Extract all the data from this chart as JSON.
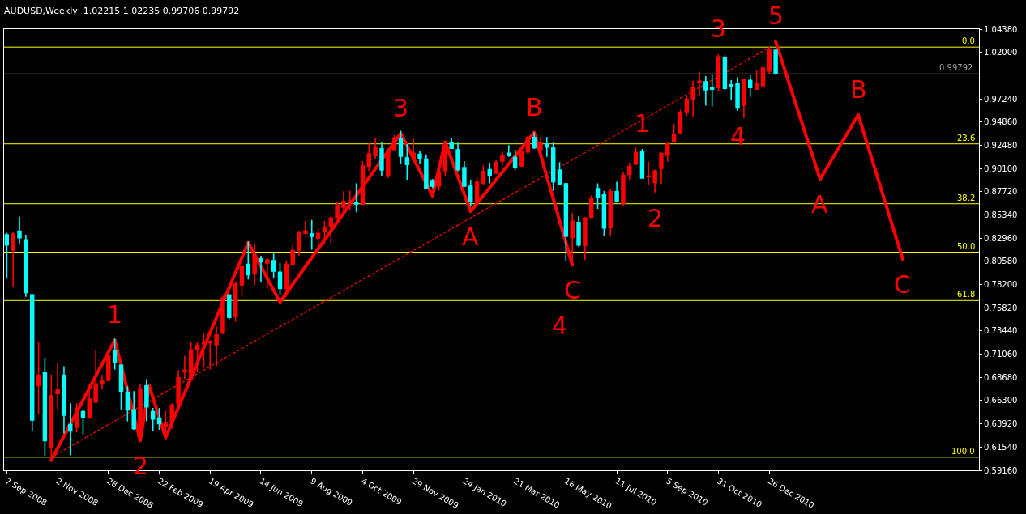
{
  "chart_data": {
    "type": "candlestick",
    "title": "AUDUSD,Weekly  1.02215 1.02235 0.99706 0.99792",
    "colors": [
      "#00ffff",
      "#ff0000",
      "#00ffff",
      "#00ffff",
      "#00ffff",
      "#ff0000",
      "#00ffff",
      "#ff0000",
      "#ff0000",
      "#00ffff",
      "#00ffff",
      "#ff0000",
      "#00ffff",
      "#ff0000",
      "#ff0000",
      "#ff0000",
      "#ff0000",
      "#00ffff",
      "#00ffff",
      "#00ffff",
      "#00ffff",
      "#ff0000",
      "#00ffff",
      "#00ffff",
      "#00ffff",
      "#ff0000",
      "#ff0000",
      "#ff0000",
      "#ff0000",
      "#ff0000",
      "#ff0000",
      "#ff0000",
      "#ff0000",
      "#ff0000",
      "#ff0000",
      "#00ffff",
      "#ff0000",
      "#ff0000",
      "#00ffff",
      "#ff0000",
      "#00ffff",
      "#ff0000",
      "#00ffff",
      "#00ffff",
      "#ff0000",
      "#ff0000",
      "#ff0000",
      "#ff0000",
      "#00ffff",
      "#ff0000",
      "#ff0000",
      "#ff0000",
      "#ff0000",
      "#ff0000",
      "#ff0000",
      "#00ffff",
      "#ff0000",
      "#ff0000",
      "#ff0000",
      "#00ffff",
      "#ff0000",
      "#ff0000",
      "#00ffff",
      "#00ffff",
      "#ff0000",
      "#00ffff",
      "#00ffff",
      "#00ffff",
      "#ff0000",
      "#ff0000",
      "#00ffff",
      "#00ffff",
      "#00ffff",
      "#00ffff",
      "#ff0000",
      "#ff0000",
      "#00ffff",
      "#ff0000",
      "#ff0000",
      "#00ffff",
      "#00ffff",
      "#ff0000",
      "#ff0000",
      "#00ffff",
      "#ff0000",
      "#00ffff",
      "#00ffff",
      "#00ffff",
      "#00ffff",
      "#ff0000",
      "#00ffff",
      "#ff0000",
      "#ff0000",
      "#00ffff",
      "#00ffff",
      "#ff0000",
      "#00ffff",
      "#ff0000",
      "#ff0000",
      "#ff0000",
      "#00ffff",
      "#ff0000",
      "#ff0000",
      "#ff0000",
      "#ff0000",
      "#ff0000",
      "#ff0000",
      "#ff0000",
      "#ff0000",
      "#ff0000",
      "#00ffff",
      "#00ffff",
      "#ff0000",
      "#00ffff",
      "#00ffff",
      "#00ffff",
      "#ff0000",
      "#00ffff",
      "#ff0000",
      "#ff0000",
      "#ff0000",
      "#00ffff"
    ],
    "x": [
      "2008-09-07",
      "2008-09-14",
      "2008-09-21",
      "2008-09-28",
      "2008-10-05",
      "2008-10-12",
      "2008-10-19",
      "2008-10-26",
      "2008-11-02",
      "2008-11-09",
      "2008-11-16",
      "2008-11-23",
      "2008-11-30",
      "2008-12-07",
      "2008-12-14",
      "2008-12-21",
      "2008-12-28",
      "2009-01-04",
      "2009-01-11",
      "2009-01-18",
      "2009-01-25",
      "2009-02-01",
      "2009-02-08",
      "2009-02-15",
      "2009-02-22",
      "2009-03-01",
      "2009-03-08",
      "2009-03-15",
      "2009-03-22",
      "2009-03-29",
      "2009-04-05",
      "2009-04-12",
      "2009-04-19",
      "2009-04-26",
      "2009-05-03",
      "2009-05-10",
      "2009-05-17",
      "2009-05-24",
      "2009-05-31",
      "2009-06-07",
      "2009-06-14",
      "2009-06-21",
      "2009-06-28",
      "2009-07-05",
      "2009-07-12",
      "2009-07-19",
      "2009-07-26",
      "2009-08-02",
      "2009-08-09",
      "2009-08-16",
      "2009-08-23",
      "2009-08-30",
      "2009-09-06",
      "2009-09-13",
      "2009-09-20",
      "2009-09-27",
      "2009-10-04",
      "2009-10-11",
      "2009-10-18",
      "2009-10-25",
      "2009-11-01",
      "2009-11-08",
      "2009-11-15",
      "2009-11-22",
      "2009-11-29",
      "2009-12-06",
      "2009-12-13",
      "2009-12-20",
      "2009-12-27",
      "2010-01-03",
      "2010-01-10",
      "2010-01-17",
      "2010-01-24",
      "2010-01-31",
      "2010-02-07",
      "2010-02-14",
      "2010-02-21",
      "2010-02-28",
      "2010-03-07",
      "2010-03-14",
      "2010-03-21",
      "2010-03-28",
      "2010-04-04",
      "2010-04-11",
      "2010-04-18",
      "2010-04-25",
      "2010-05-02",
      "2010-05-09",
      "2010-05-16",
      "2010-05-23",
      "2010-05-30",
      "2010-06-06",
      "2010-06-13",
      "2010-06-20",
      "2010-06-27",
      "2010-07-04",
      "2010-07-11",
      "2010-07-18",
      "2010-07-25",
      "2010-08-01",
      "2010-08-08",
      "2010-08-15",
      "2010-08-22",
      "2010-08-29",
      "2010-09-05",
      "2010-09-12",
      "2010-09-19",
      "2010-09-26",
      "2010-10-03",
      "2010-10-10",
      "2010-10-17",
      "2010-10-24",
      "2010-10-31",
      "2010-11-07",
      "2010-11-14",
      "2010-11-21",
      "2010-11-28",
      "2010-12-05",
      "2010-12-12",
      "2010-12-19",
      "2010-12-26",
      "2011-01-02"
    ],
    "ohlc": [
      [
        0.833,
        0.835,
        0.7891,
        0.8226
      ],
      [
        0.8176,
        0.8357,
        0.7797,
        0.8337
      ],
      [
        0.8367,
        0.8516,
        0.8238,
        0.83
      ],
      [
        0.8278,
        0.833,
        0.7693,
        0.7738
      ],
      [
        0.7713,
        0.7723,
        0.6323,
        0.643
      ],
      [
        0.6784,
        0.7238,
        0.6487,
        0.6888
      ],
      [
        0.6918,
        0.7069,
        0.6063,
        0.6219
      ],
      [
        0.6157,
        0.6896,
        0.6009,
        0.6678
      ],
      [
        0.6702,
        0.7015,
        0.6541,
        0.674
      ],
      [
        0.6888,
        0.6982,
        0.6294,
        0.648
      ],
      [
        0.6385,
        0.6603,
        0.6071,
        0.6319
      ],
      [
        0.6356,
        0.6603,
        0.6306,
        0.6546
      ],
      [
        0.6517,
        0.6541,
        0.6286,
        0.646
      ],
      [
        0.646,
        0.6801,
        0.6442,
        0.6645
      ],
      [
        0.6616,
        0.7143,
        0.6603,
        0.6801
      ],
      [
        0.6801,
        0.6893,
        0.6752,
        0.6834
      ],
      [
        0.6839,
        0.7099,
        0.6826,
        0.7091
      ],
      [
        0.7141,
        0.7267,
        0.695,
        0.7024
      ],
      [
        0.6992,
        0.7,
        0.6534,
        0.6727
      ],
      [
        0.6715,
        0.6777,
        0.6418,
        0.6534
      ],
      [
        0.6536,
        0.6727,
        0.6331,
        0.6343
      ],
      [
        0.6368,
        0.6801,
        0.6207,
        0.6752
      ],
      [
        0.6782,
        0.6851,
        0.6418,
        0.6566
      ],
      [
        0.6517,
        0.6554,
        0.6323,
        0.6442
      ],
      [
        0.645,
        0.6554,
        0.6331,
        0.6393
      ],
      [
        0.6363,
        0.6524,
        0.6306,
        0.6405
      ],
      [
        0.6405,
        0.6603,
        0.6343,
        0.6584
      ],
      [
        0.66,
        0.6943,
        0.655,
        0.6863
      ],
      [
        0.6925,
        0.7091,
        0.6851,
        0.6943
      ],
      [
        0.6851,
        0.7228,
        0.6839,
        0.7148
      ],
      [
        0.7156,
        0.7235,
        0.6925,
        0.7198
      ],
      [
        0.721,
        0.7327,
        0.6975,
        0.7223
      ],
      [
        0.7223,
        0.7247,
        0.695,
        0.7235
      ],
      [
        0.7203,
        0.7391,
        0.6987,
        0.7304
      ],
      [
        0.7322,
        0.7706,
        0.7309,
        0.7681
      ],
      [
        0.7713,
        0.7718,
        0.7463,
        0.7483
      ],
      [
        0.749,
        0.7854,
        0.7438,
        0.7824
      ],
      [
        0.7817,
        0.801,
        0.7693,
        0.8003
      ],
      [
        0.8028,
        0.8263,
        0.7872,
        0.7921
      ],
      [
        0.7929,
        0.8233,
        0.7817,
        0.8122
      ],
      [
        0.8085,
        0.8114,
        0.7842,
        0.8052
      ],
      [
        0.804,
        0.809,
        0.778,
        0.8072
      ],
      [
        0.8065,
        0.8152,
        0.7891,
        0.7958
      ],
      [
        0.7946,
        0.804,
        0.7706,
        0.778
      ],
      [
        0.778,
        0.807,
        0.7693,
        0.8028
      ],
      [
        0.802,
        0.8218,
        0.8015,
        0.8169
      ],
      [
        0.8176,
        0.8374,
        0.8114,
        0.8355
      ],
      [
        0.8345,
        0.8471,
        0.8332,
        0.8369
      ],
      [
        0.834,
        0.8481,
        0.8176,
        0.8315
      ],
      [
        0.8295,
        0.8397,
        0.8159,
        0.8345
      ],
      [
        0.8367,
        0.8471,
        0.8238,
        0.8397
      ],
      [
        0.8412,
        0.8528,
        0.8238,
        0.8503
      ],
      [
        0.8506,
        0.8669,
        0.8498,
        0.863
      ],
      [
        0.8612,
        0.8776,
        0.8535,
        0.8672
      ],
      [
        0.8654,
        0.8783,
        0.8585,
        0.8679
      ],
      [
        0.8659,
        0.8857,
        0.856,
        0.8647
      ],
      [
        0.8642,
        0.9085,
        0.8639,
        0.9036
      ],
      [
        0.9031,
        0.9266,
        0.8981,
        0.916
      ],
      [
        0.9142,
        0.9323,
        0.9105,
        0.9222
      ],
      [
        0.9212,
        0.9279,
        0.8932,
        0.8994
      ],
      [
        0.8939,
        0.9209,
        0.8912,
        0.9184
      ],
      [
        0.9204,
        0.9353,
        0.9192,
        0.9323
      ],
      [
        0.9316,
        0.9397,
        0.9056,
        0.9135
      ],
      [
        0.9118,
        0.9259,
        0.8895,
        0.9051
      ],
      [
        0.9105,
        0.9316,
        0.9093,
        0.9167
      ],
      [
        0.9155,
        0.9192,
        0.9056,
        0.9118
      ],
      [
        0.9105,
        0.9155,
        0.8796,
        0.8808
      ],
      [
        0.8887,
        0.8902,
        0.8808,
        0.8828
      ],
      [
        0.8828,
        0.8981,
        0.8783,
        0.8976
      ],
      [
        0.8986,
        0.9279,
        0.8932,
        0.9241
      ],
      [
        0.9271,
        0.9323,
        0.9209,
        0.9217
      ],
      [
        0.9202,
        0.9274,
        0.8981,
        0.8999
      ],
      [
        0.9019,
        0.9085,
        0.882,
        0.8828
      ],
      [
        0.8828,
        0.8895,
        0.8622,
        0.8672
      ],
      [
        0.8672,
        0.8919,
        0.8659,
        0.887
      ],
      [
        0.8862,
        0.9043,
        0.8845,
        0.8981
      ],
      [
        0.8999,
        0.9068,
        0.8857,
        0.8937
      ],
      [
        0.8961,
        0.9093,
        0.8952,
        0.9073
      ],
      [
        0.9085,
        0.9192,
        0.9043,
        0.9147
      ],
      [
        0.9167,
        0.9249,
        0.913,
        0.9142
      ],
      [
        0.9125,
        0.9204,
        0.8994,
        0.9026
      ],
      [
        0.9036,
        0.9204,
        0.9026,
        0.9184
      ],
      [
        0.9179,
        0.934,
        0.916,
        0.9328
      ],
      [
        0.9328,
        0.9383,
        0.9209,
        0.9222
      ],
      [
        0.9204,
        0.9333,
        0.9192,
        0.9271
      ],
      [
        0.9259,
        0.9333,
        0.913,
        0.9229
      ],
      [
        0.9229,
        0.9274,
        0.8783,
        0.8875
      ],
      [
        0.8994,
        0.9075,
        0.8845,
        0.8852
      ],
      [
        0.8852,
        0.8862,
        0.8065,
        0.8317
      ],
      [
        0.83,
        0.8555,
        0.804,
        0.8469
      ],
      [
        0.8456,
        0.8523,
        0.8208,
        0.8226
      ],
      [
        0.8221,
        0.8511,
        0.8072,
        0.8503
      ],
      [
        0.8511,
        0.8734,
        0.8498,
        0.8704
      ],
      [
        0.8803,
        0.8857,
        0.8597,
        0.8716
      ],
      [
        0.8739,
        0.8778,
        0.8313,
        0.8399
      ],
      [
        0.8404,
        0.8796,
        0.8313,
        0.8771
      ],
      [
        0.8771,
        0.8875,
        0.8667,
        0.8667
      ],
      [
        0.8652,
        0.8969,
        0.863,
        0.8939
      ],
      [
        0.8949,
        0.9068,
        0.8895,
        0.9031
      ],
      [
        0.9056,
        0.9222,
        0.9043,
        0.9172
      ],
      [
        0.9184,
        0.9209,
        0.8907,
        0.8912
      ],
      [
        0.8927,
        0.908,
        0.8838,
        0.8932
      ],
      [
        0.8867,
        0.8999,
        0.8763,
        0.8986
      ],
      [
        0.9011,
        0.9179,
        0.8852,
        0.9162
      ],
      [
        0.9147,
        0.9279,
        0.908,
        0.9261
      ],
      [
        0.9283,
        0.9469,
        0.9274,
        0.9358
      ],
      [
        0.9378,
        0.9613,
        0.9358,
        0.9586
      ],
      [
        0.9593,
        0.9749,
        0.9551,
        0.9719
      ],
      [
        0.9719,
        0.991,
        0.9534,
        0.9838
      ],
      [
        0.989,
        1.0002,
        0.9757,
        0.9905
      ],
      [
        0.9898,
        0.9957,
        0.9655,
        0.9816
      ],
      [
        0.9843,
        0.9972,
        0.9645,
        0.9823
      ],
      [
        0.9838,
        1.0178,
        0.9804,
        1.0153
      ],
      [
        1.0143,
        1.017,
        0.9818,
        0.9831
      ],
      [
        0.9868,
        0.9918,
        0.9712,
        0.9853
      ],
      [
        0.9883,
        0.9947,
        0.9601,
        0.963
      ],
      [
        0.966,
        0.993,
        0.9526,
        0.9922
      ],
      [
        0.9913,
        0.9965,
        0.9744,
        0.9838
      ],
      [
        0.9823,
        1.0022,
        0.9823,
        0.9875
      ],
      [
        0.9858,
        1.0059,
        0.9853,
        1.0039
      ],
      [
        1.0009,
        1.0254,
        0.9977,
        1.0227
      ],
      [
        1.02215,
        1.02235,
        0.99706,
        0.99792
      ]
    ],
    "series": [
      {
        "type": "line",
        "color": "#ff0000",
        "line_style": "solid",
        "x": [
          "2008-10-26",
          "2009-01-04",
          "2009-02-01",
          "2009-02-11",
          "2009-03-01",
          "2009-05-31",
          "2009-07-05",
          "2009-11-15",
          "2009-12-20",
          "2010-01-03",
          "2010-01-31",
          "2010-04-11",
          "2010-05-23"
        ],
        "values": [
          0.602,
          0.725,
          0.622,
          0.678,
          0.625,
          0.825,
          0.764,
          0.937,
          0.873,
          0.928,
          0.857,
          0.938,
          0.802
        ]
      },
      {
        "type": "line",
        "color": "#ff0000",
        "line_style": "solid",
        "x": [
          "2011-01-02",
          "2011-02-20",
          "2011-04-03",
          "2011-05-22"
        ],
        "values": [
          1.031,
          0.89,
          0.956,
          0.808
        ]
      },
      {
        "type": "line",
        "color": "#ff0000",
        "line_style": "dotted",
        "x": [
          "2008-10-26",
          "2010-12-26"
        ],
        "values": [
          0.605,
          1.025
        ]
      }
    ],
    "ref_lines": [
      {
        "axis": "y",
        "value": 1.0254,
        "color": "#ffff00"
      },
      {
        "axis": "y",
        "value": 0.9262,
        "color": "#ffff00"
      },
      {
        "axis": "y",
        "value": 0.8648,
        "color": "#ffff00"
      },
      {
        "axis": "y",
        "value": 0.8152,
        "color": "#ffff00"
      },
      {
        "axis": "y",
        "value": 0.7656,
        "color": "#ffff00"
      },
      {
        "axis": "y",
        "value": 0.605,
        "color": "#ffff00"
      },
      {
        "axis": "y",
        "value": 0.99792,
        "label": "0.99792",
        "color": "#a0a0a0"
      }
    ],
    "annotations": [
      {
        "text": "1",
        "x": "2009-01-04",
        "y": 0.725
      },
      {
        "text": "2",
        "x": "2009-02-01",
        "y": 0.622
      },
      {
        "text": "3",
        "x": "2009-11-15",
        "y": 0.937
      },
      {
        "text": "A",
        "x": "2010-01-31",
        "y": 0.857
      },
      {
        "text": "B",
        "x": "2010-04-11",
        "y": 0.938
      },
      {
        "text": "C",
        "x": "2010-05-23",
        "y": 0.802
      },
      {
        "text": "4",
        "x": "2010-05-09",
        "y": 0.7656
      },
      {
        "text": "1",
        "x": "2010-08-08",
        "y": 0.9209
      },
      {
        "text": "2",
        "x": "2010-08-22",
        "y": 0.8763
      },
      {
        "text": "3",
        "x": "2010-10-31",
        "y": 1.0178
      },
      {
        "text": "4",
        "x": "2010-11-21",
        "y": 0.9601
      },
      {
        "text": "5",
        "x": "2011-01-02",
        "y": 1.031
      },
      {
        "text": "A",
        "x": "2011-02-20",
        "y": 0.89
      },
      {
        "text": "B",
        "x": "2011-04-03",
        "y": 0.956
      },
      {
        "text": "C",
        "x": "2011-05-22",
        "y": 0.808
      },
      {
        "text": "0.0",
        "x": "2011-08-14",
        "y": 1.0254
      },
      {
        "text": "23.6",
        "x": "2011-08-14",
        "y": 0.9262
      },
      {
        "text": "38.2",
        "x": "2011-08-14",
        "y": 0.8648
      },
      {
        "text": "50.0",
        "x": "2011-08-14",
        "y": 0.8152
      },
      {
        "text": "61.8",
        "x": "2011-08-14",
        "y": 0.7656
      },
      {
        "text": "100.0",
        "x": "2011-08-14",
        "y": 0.605
      }
    ],
    "xlim": [
      "2008-09-04",
      "2011-08-14"
    ],
    "ylim": [
      0.5916,
      1.0438
    ],
    "xticks": [
      {
        "value": "2008-09-07",
        "label": "7 Sep 2008"
      },
      {
        "value": "2008-11-02",
        "label": "2 Nov 2008"
      },
      {
        "value": "2008-12-28",
        "label": "28 Dec 2008"
      },
      {
        "value": "2009-02-22",
        "label": "22 Feb 2009"
      },
      {
        "value": "2009-04-19",
        "label": "19 Apr 2009"
      },
      {
        "value": "2009-06-14",
        "label": "14 Jun 2009"
      },
      {
        "value": "2009-08-09",
        "label": "9 Aug 2009"
      },
      {
        "value": "2009-10-04",
        "label": "4 Oct 2009"
      },
      {
        "value": "2009-11-29",
        "label": "29 Nov 2009"
      },
      {
        "value": "2010-01-24",
        "label": "24 Jan 2010"
      },
      {
        "value": "2010-03-21",
        "label": "21 Mar 2010"
      },
      {
        "value": "2010-05-16",
        "label": "16 May 2010"
      },
      {
        "value": "2010-07-11",
        "label": "11 Jul 2010"
      },
      {
        "value": "2010-09-05",
        "label": "5 Sep 2010"
      },
      {
        "value": "2010-10-31",
        "label": "31 Oct 2010"
      },
      {
        "value": "2010-12-26",
        "label": "26 Dec 2010"
      }
    ],
    "yticks": [
      {
        "value": 1.0438,
        "label": "1.04380"
      },
      {
        "value": 1.02,
        "label": "1.02000"
      },
      {
        "value": 0.9724,
        "label": "0.97240"
      },
      {
        "value": 0.9486,
        "label": "0.94860"
      },
      {
        "value": 0.9248,
        "label": "0.92480"
      },
      {
        "value": 0.901,
        "label": "0.90100"
      },
      {
        "value": 0.8772,
        "label": "0.87720"
      },
      {
        "value": 0.8534,
        "label": "0.85340"
      },
      {
        "value": 0.8296,
        "label": "0.82960"
      },
      {
        "value": 0.8058,
        "label": "0.80580"
      },
      {
        "value": 0.782,
        "label": "0.78200"
      },
      {
        "value": 0.7582,
        "label": "0.75820"
      },
      {
        "value": 0.7344,
        "label": "0.73440"
      },
      {
        "value": 0.7106,
        "label": "0.71060"
      },
      {
        "value": 0.6868,
        "label": "0.68680"
      },
      {
        "value": 0.663,
        "label": "0.66300"
      },
      {
        "value": 0.6392,
        "label": "0.63920"
      },
      {
        "value": 0.6154,
        "label": "0.61540"
      },
      {
        "value": 0.5916,
        "label": "0.59160"
      }
    ]
  }
}
